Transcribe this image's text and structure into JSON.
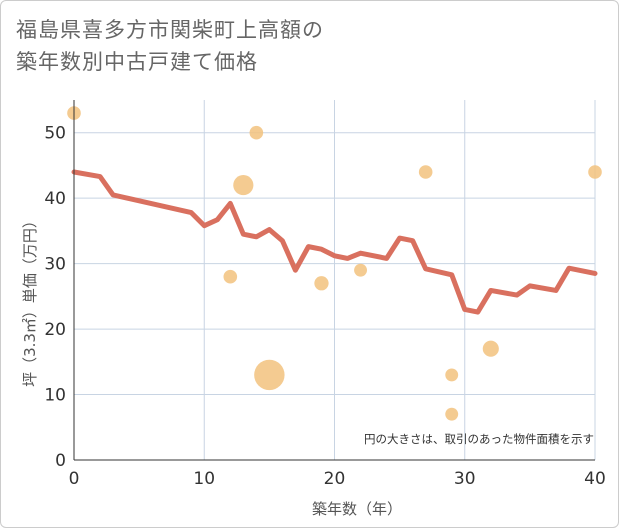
{
  "title_lines": [
    "福島県喜多方市関柴町上高額の",
    "築年数別中古戸建て価格"
  ],
  "chart_data": {
    "type": "scatter+line",
    "xlabel": "築年数（年）",
    "ylabel": "坪（3.3㎡）単価（万円）",
    "xlim": [
      0,
      40
    ],
    "ylim": [
      0,
      55
    ],
    "xticks": [
      0,
      10,
      20,
      30,
      40
    ],
    "yticks": [
      0,
      10,
      20,
      30,
      40,
      50
    ],
    "grid": true,
    "note": "円の大きさは、取引のあった物件面積を示す",
    "colors": {
      "line": "#d9705f",
      "bubble": "#f2c27e",
      "grid": "#c8d4e3",
      "axis": "#333333"
    },
    "scatter": [
      {
        "x": 0,
        "y": 53,
        "size": 1
      },
      {
        "x": 12,
        "y": 28,
        "size": 1
      },
      {
        "x": 13,
        "y": 42,
        "size": 2.2
      },
      {
        "x": 14,
        "y": 50,
        "size": 1
      },
      {
        "x": 15,
        "y": 13,
        "size": 5
      },
      {
        "x": 19,
        "y": 27,
        "size": 1.1
      },
      {
        "x": 22,
        "y": 29,
        "size": 0.9
      },
      {
        "x": 27,
        "y": 44,
        "size": 1
      },
      {
        "x": 29,
        "y": 13,
        "size": 0.9
      },
      {
        "x": 29,
        "y": 7,
        "size": 0.9
      },
      {
        "x": 32,
        "y": 17,
        "size": 1.4
      },
      {
        "x": 40,
        "y": 44,
        "size": 1
      }
    ],
    "line": {
      "x": [
        0,
        2,
        3,
        9,
        10,
        11,
        12,
        13,
        14,
        15,
        16,
        17,
        18,
        19,
        20,
        21,
        22,
        24,
        25,
        26,
        27,
        29,
        30,
        31,
        32,
        34,
        35,
        37,
        38,
        40
      ],
      "y": [
        44,
        43.3,
        40.5,
        37.8,
        35.8,
        36.7,
        39.2,
        34.5,
        34.1,
        35.2,
        33.5,
        29,
        32.6,
        32.2,
        31.2,
        30.8,
        31.6,
        30.8,
        33.9,
        33.5,
        29.2,
        28.3,
        23,
        22.6,
        25.9,
        25.2,
        26.6,
        25.9,
        29.3,
        28.5
      ]
    }
  }
}
